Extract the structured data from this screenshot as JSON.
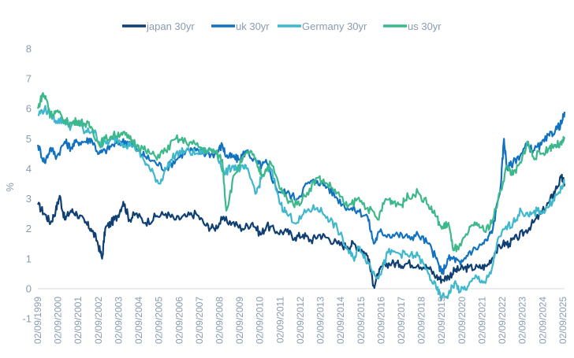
{
  "chart_data": {
    "type": "line",
    "title": "",
    "xlabel": "",
    "ylabel": "%",
    "ylim": [
      -1,
      8
    ],
    "yticks": [
      -1,
      0,
      1,
      2,
      3,
      4,
      5,
      6,
      7,
      8
    ],
    "xlim": [
      1999.667,
      2025.75
    ],
    "x_tick_labels": [
      "02/09/1999",
      "02/09/2000",
      "02/09/2001",
      "02/09/2002",
      "02/09/2003",
      "02/09/2004",
      "02/09/2005",
      "02/09/2006",
      "02/09/2007",
      "02/09/2008",
      "02/09/2009",
      "02/09/2010",
      "02/09/2011",
      "02/09/2012",
      "02/09/2013",
      "02/09/2014",
      "02/09/2015",
      "02/09/2016",
      "02/09/2017",
      "02/09/2018",
      "02/09/2019",
      "02/09/2020",
      "02/09/2021",
      "02/09/2022",
      "02/09/2023",
      "02/09/2024",
      "02/09/2025"
    ],
    "x_tick_values": [
      1999.667,
      2000.667,
      2001.667,
      2002.667,
      2003.667,
      2004.667,
      2005.667,
      2006.667,
      2007.667,
      2008.667,
      2009.667,
      2010.667,
      2011.667,
      2012.667,
      2013.667,
      2014.667,
      2015.667,
      2016.667,
      2017.667,
      2018.667,
      2019.667,
      2020.667,
      2021.667,
      2022.667,
      2023.667,
      2024.667,
      2025.667
    ],
    "grid": false,
    "legend_position": "top-center",
    "series": [
      {
        "name": "japan 30yr",
        "color": "#0f3f73",
        "x": [
          1999.67,
          2000.0,
          2000.3,
          2000.55,
          2000.75,
          2001.0,
          2001.3,
          2001.6,
          2002.0,
          2002.3,
          2002.6,
          2002.85,
          2003.0,
          2003.3,
          2003.6,
          2003.9,
          2004.2,
          2004.5,
          2005.0,
          2005.5,
          2006.0,
          2006.5,
          2007.0,
          2007.5,
          2008.0,
          2008.4,
          2008.8,
          2009.3,
          2009.8,
          2010.3,
          2010.7,
          2011.0,
          2011.5,
          2012.0,
          2012.4,
          2012.8,
          2013.2,
          2013.6,
          2014.0,
          2014.5,
          2015.0,
          2015.3,
          2015.7,
          2016.0,
          2016.3,
          2016.55,
          2016.8,
          2017.2,
          2017.6,
          2018.0,
          2018.5,
          2019.0,
          2019.4,
          2019.67,
          2020.0,
          2020.3,
          2020.6,
          2021.0,
          2021.5,
          2021.9,
          2022.3,
          2022.7,
          2023.0,
          2023.4,
          2023.8,
          2024.2,
          2024.6,
          2025.0,
          2025.3,
          2025.6,
          2025.75
        ],
        "y": [
          2.8,
          2.5,
          2.2,
          2.6,
          3.1,
          2.3,
          2.6,
          2.5,
          2.2,
          2.0,
          1.6,
          1.0,
          2.0,
          2.2,
          2.4,
          2.9,
          2.3,
          2.5,
          2.2,
          2.4,
          2.5,
          2.3,
          2.4,
          2.5,
          2.1,
          2.0,
          2.3,
          2.2,
          2.0,
          2.2,
          1.8,
          2.1,
          1.9,
          1.9,
          1.7,
          1.8,
          1.6,
          1.8,
          1.7,
          1.5,
          1.4,
          1.5,
          1.3,
          1.1,
          0.1,
          0.5,
          0.8,
          0.85,
          0.8,
          0.85,
          0.8,
          0.7,
          0.4,
          0.3,
          0.4,
          0.6,
          0.65,
          0.7,
          0.7,
          0.75,
          1.2,
          1.5,
          1.5,
          1.7,
          1.9,
          2.2,
          2.5,
          2.9,
          3.3,
          3.7,
          3.5
        ]
      },
      {
        "name": "uk 30yr",
        "color": "#1272c0",
        "x": [
          1999.67,
          2000.0,
          2000.3,
          2000.6,
          2001.0,
          2001.3,
          2001.6,
          2002.0,
          2002.3,
          2002.7,
          2003.0,
          2003.4,
          2003.8,
          2004.2,
          2004.6,
          2005.0,
          2005.5,
          2006.0,
          2006.5,
          2007.0,
          2007.5,
          2008.0,
          2008.5,
          2008.8,
          2009.0,
          2009.3,
          2009.6,
          2010.0,
          2010.5,
          2010.75,
          2011.0,
          2011.5,
          2012.0,
          2012.5,
          2013.0,
          2013.5,
          2014.0,
          2014.5,
          2015.0,
          2015.5,
          2016.0,
          2016.3,
          2016.6,
          2017.0,
          2017.5,
          2018.0,
          2018.5,
          2019.0,
          2019.4,
          2019.67,
          2020.0,
          2020.3,
          2020.6,
          2021.0,
          2021.5,
          2021.9,
          2022.2,
          2022.6,
          2022.75,
          2022.9,
          2023.2,
          2023.6,
          2023.9,
          2024.2,
          2024.6,
          2025.0,
          2025.3,
          2025.6,
          2025.75
        ],
        "y": [
          4.8,
          4.2,
          4.7,
          4.4,
          4.9,
          4.7,
          4.9,
          4.9,
          5.0,
          4.5,
          4.6,
          4.8,
          4.9,
          4.9,
          4.6,
          4.4,
          4.2,
          4.0,
          4.3,
          4.6,
          4.6,
          4.5,
          4.5,
          4.8,
          4.4,
          4.4,
          4.3,
          4.6,
          4.2,
          4.1,
          4.2,
          3.3,
          3.2,
          3.0,
          3.5,
          3.6,
          3.4,
          3.0,
          2.7,
          2.6,
          2.4,
          1.5,
          1.9,
          1.8,
          1.8,
          1.7,
          1.8,
          1.5,
          1.0,
          0.5,
          1.0,
          1.0,
          0.8,
          1.2,
          1.4,
          1.6,
          2.0,
          3.5,
          5.0,
          4.0,
          4.2,
          4.5,
          4.8,
          4.6,
          4.8,
          5.1,
          5.3,
          5.5,
          5.9
        ]
      },
      {
        "name": "Germany 30yr",
        "color": "#3fb7cc",
        "x": [
          1999.67,
          2000.0,
          2000.3,
          2000.6,
          2001.0,
          2001.3,
          2001.6,
          2002.0,
          2002.4,
          2002.8,
          2003.2,
          2003.6,
          2004.0,
          2004.4,
          2004.8,
          2005.2,
          2005.7,
          2006.0,
          2006.5,
          2007.0,
          2007.5,
          2008.0,
          2008.5,
          2008.9,
          2009.3,
          2009.7,
          2010.0,
          2010.5,
          2010.8,
          2011.2,
          2011.7,
          2012.0,
          2012.5,
          2013.0,
          2013.5,
          2014.0,
          2014.5,
          2015.0,
          2015.3,
          2015.6,
          2016.0,
          2016.4,
          2016.7,
          2017.0,
          2017.5,
          2018.0,
          2018.5,
          2019.0,
          2019.4,
          2019.67,
          2020.0,
          2020.3,
          2020.6,
          2021.0,
          2021.4,
          2021.8,
          2022.1,
          2022.4,
          2022.8,
          2023.2,
          2023.6,
          2024.0,
          2024.4,
          2024.8,
          2025.2,
          2025.5,
          2025.75
        ],
        "y": [
          5.8,
          6.0,
          5.8,
          5.6,
          5.6,
          5.4,
          5.6,
          5.2,
          5.3,
          4.8,
          4.9,
          5.0,
          4.8,
          4.8,
          4.4,
          4.0,
          3.5,
          4.0,
          4.5,
          4.6,
          4.5,
          4.6,
          4.6,
          3.8,
          4.1,
          4.0,
          4.0,
          3.2,
          3.8,
          4.0,
          2.8,
          2.5,
          2.2,
          2.6,
          2.7,
          2.4,
          2.0,
          1.3,
          1.0,
          1.4,
          0.9,
          0.4,
          0.6,
          1.2,
          1.2,
          1.1,
          1.1,
          0.5,
          0.0,
          -0.3,
          -0.2,
          0.2,
          -0.1,
          0.1,
          0.4,
          0.2,
          0.5,
          1.5,
          2.0,
          2.2,
          2.6,
          2.4,
          2.6,
          2.6,
          3.0,
          3.2,
          3.6
        ]
      },
      {
        "name": "us 30yr",
        "color": "#3cb88a",
        "x": [
          1999.67,
          1999.9,
          2000.1,
          2000.3,
          2000.6,
          2001.0,
          2001.3,
          2001.6,
          2002.0,
          2002.3,
          2002.7,
          2003.0,
          2003.4,
          2003.8,
          2004.2,
          2004.6,
          2005.0,
          2005.5,
          2006.0,
          2006.5,
          2007.0,
          2007.5,
          2008.0,
          2008.4,
          2008.8,
          2009.0,
          2009.4,
          2009.8,
          2010.2,
          2010.6,
          2010.8,
          2011.2,
          2011.7,
          2012.0,
          2012.5,
          2013.0,
          2013.5,
          2014.0,
          2014.5,
          2015.0,
          2015.5,
          2016.0,
          2016.5,
          2016.9,
          2017.3,
          2017.7,
          2018.0,
          2018.5,
          2019.0,
          2019.4,
          2019.67,
          2020.0,
          2020.2,
          2020.5,
          2021.0,
          2021.4,
          2021.8,
          2022.2,
          2022.6,
          2022.9,
          2023.2,
          2023.6,
          2023.9,
          2024.2,
          2024.6,
          2025.0,
          2025.3,
          2025.6,
          2025.75
        ],
        "y": [
          6.0,
          6.5,
          6.3,
          5.8,
          5.9,
          5.6,
          5.5,
          5.6,
          5.5,
          5.4,
          4.8,
          5.0,
          5.1,
          5.2,
          5.0,
          4.8,
          4.6,
          4.4,
          4.6,
          5.0,
          4.9,
          4.8,
          4.6,
          4.6,
          4.3,
          2.6,
          3.8,
          4.3,
          4.6,
          4.0,
          3.8,
          4.2,
          3.3,
          3.0,
          2.8,
          3.2,
          3.7,
          3.5,
          3.2,
          2.7,
          3.0,
          2.7,
          2.3,
          3.0,
          2.9,
          2.8,
          3.1,
          3.2,
          2.8,
          2.4,
          2.0,
          2.2,
          1.4,
          1.3,
          1.9,
          2.2,
          1.9,
          2.3,
          3.3,
          4.1,
          3.8,
          4.2,
          4.9,
          4.4,
          4.5,
          4.7,
          4.8,
          4.8,
          5.0
        ]
      }
    ]
  }
}
